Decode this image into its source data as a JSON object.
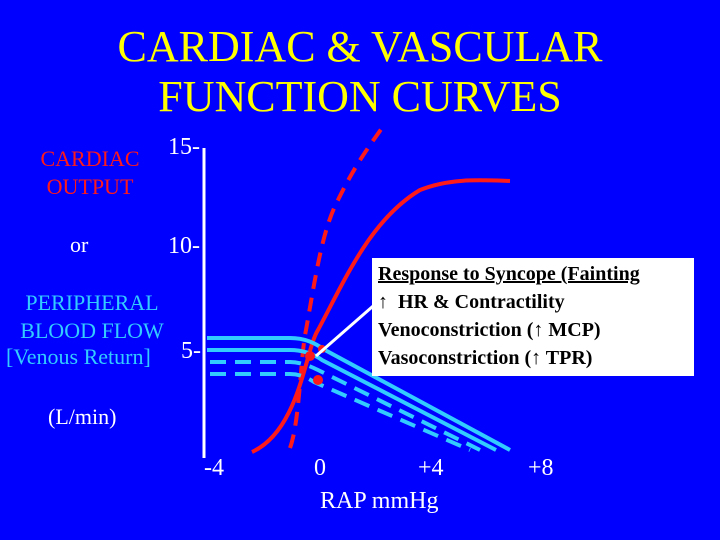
{
  "title": {
    "line1": "CARDIAC  & VASCULAR",
    "line2": "FUNCTION  CURVES"
  },
  "y_axis": {
    "label_cardiac_output_1": "CARDIAC",
    "label_cardiac_output_2": "OUTPUT",
    "label_or": "or",
    "label_peripheral_1": "PERIPHERAL",
    "label_peripheral_2": "BLOOD  FLOW",
    "label_peripheral_3": "[Venous Return]",
    "label_units": "(L/min)",
    "ticks": [
      "15-",
      "10-",
      "5-"
    ]
  },
  "x_axis": {
    "ticks": [
      "-4",
      "0",
      "+4",
      "+8"
    ],
    "label": "RAP mmHg"
  },
  "annotation": {
    "line1": "Response to Syncope (Fainting",
    "line2_prefix": "HR & Contractility",
    "line3_prefix": "Venoconstriction (",
    "line3_suffix": " MCP)",
    "line4_prefix": "Vasoconstriction (",
    "line4_suffix": " TPR)",
    "arrow_symbol": "↑"
  },
  "colors": {
    "background": "#0000FF",
    "title": "#FFFF00",
    "cardiac_curve": "#FF1A1A",
    "vascular_curve": "#33CCFF",
    "axis": "#FFFFFF"
  }
}
